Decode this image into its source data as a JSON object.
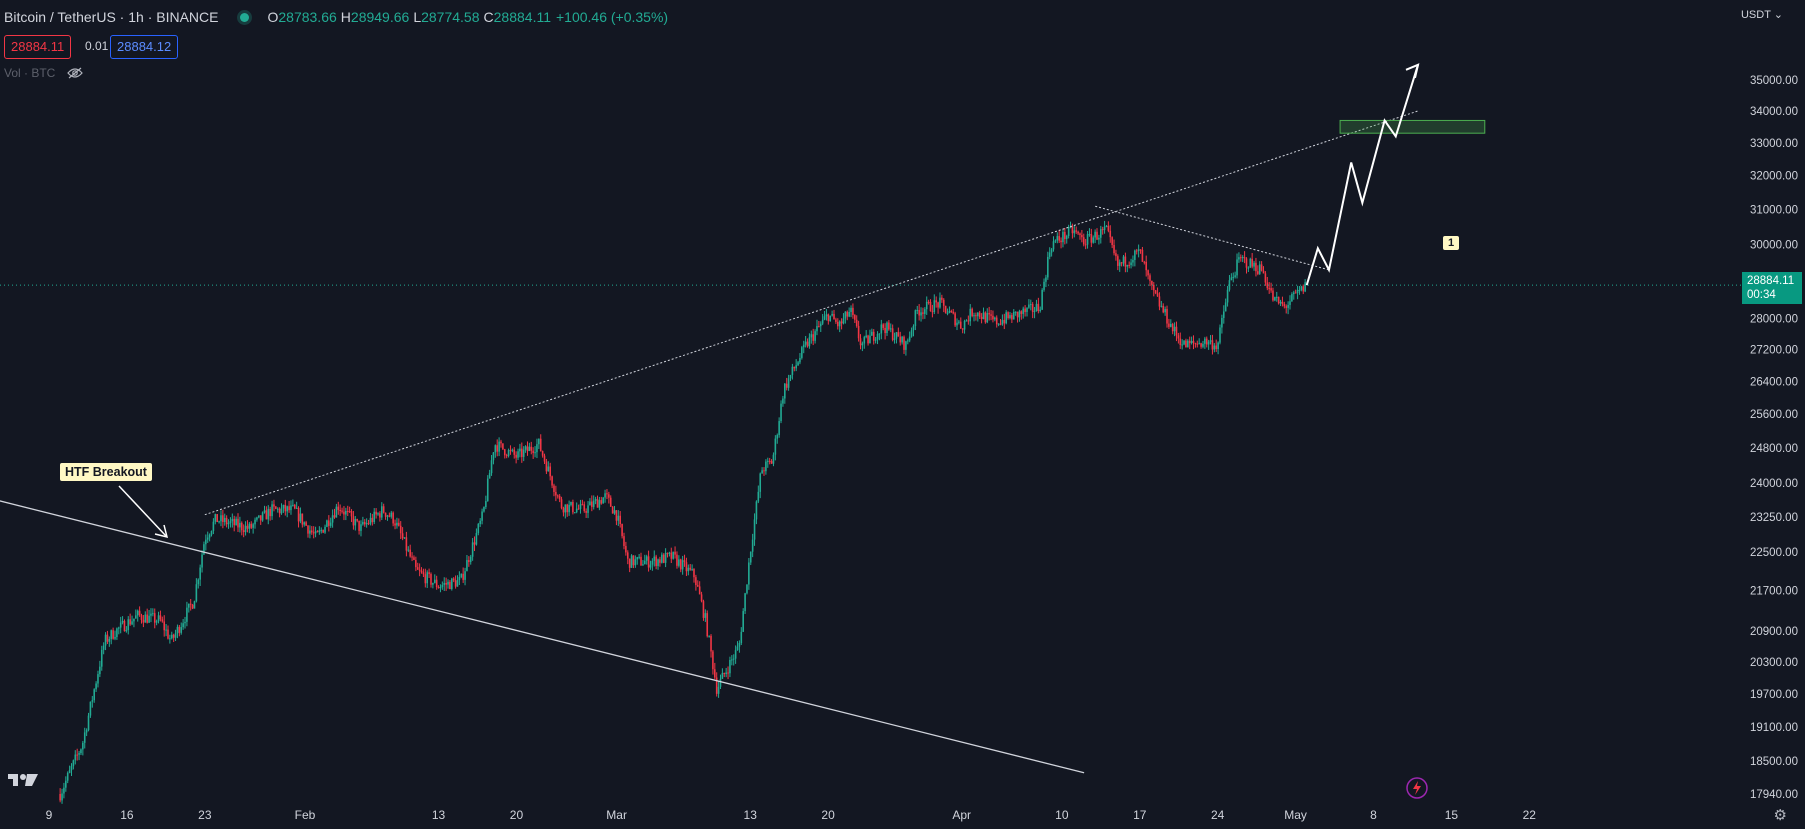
{
  "header": {
    "title": "Bitcoin / TetherUS · 1h · BINANCE",
    "open_label": "O",
    "open": "28783.66",
    "high_label": "H",
    "high": "28949.66",
    "low_label": "L",
    "low": "28774.58",
    "close_label": "C",
    "close": "28884.11",
    "change": "+100.46 (+0.35%)"
  },
  "order": {
    "sell": "28884.11",
    "spread": "0.01",
    "buy": "28884.12"
  },
  "volume": {
    "label": "Vol · BTC",
    "icon": "eye-off-icon"
  },
  "currency": "USDT",
  "current_price": {
    "price": "28884.11",
    "countdown": "00:34"
  },
  "annotations": {
    "breakout_label": "HTF Breakout",
    "marker_label": "1"
  },
  "colors": {
    "background": "#131722",
    "up": "#22ab94",
    "down": "#f23645",
    "price_tag": "#089981",
    "zone_fill": "rgba(76,175,80,0.25)",
    "zone_border": "#4caf50",
    "bolt": "#9c27b0"
  },
  "chart_data": {
    "type": "candlestick",
    "y_scale": "log",
    "y_tick_labels": [
      "35000.00",
      "34000.00",
      "33000.00",
      "32000.00",
      "31000.00",
      "30000.00",
      "28000.00",
      "27200.00",
      "26400.00",
      "25600.00",
      "24800.00",
      "24000.00",
      "23250.00",
      "22500.00",
      "21700.00",
      "20900.00",
      "20300.00",
      "19700.00",
      "19100.00",
      "18500.00",
      "17940.00"
    ],
    "y_ticks": [
      35000,
      34000,
      33000,
      32000,
      31000,
      30000,
      28000,
      27200,
      26400,
      25600,
      24800,
      24000,
      23250,
      22500,
      21700,
      20900,
      20300,
      19700,
      19100,
      18500,
      17940
    ],
    "x_tick_labels": [
      "9",
      "16",
      "23",
      "Feb",
      "13",
      "20",
      "Mar",
      "13",
      "20",
      "Apr",
      "10",
      "17",
      "24",
      "May",
      "8",
      "15",
      "22"
    ],
    "x_tick_days": [
      -23,
      -16,
      -9,
      0,
      12,
      19,
      28,
      40,
      47,
      59,
      68,
      75,
      82,
      89,
      96,
      103,
      110
    ],
    "x_tick_date_origin": "Feb",
    "price_path": [
      [
        -22,
        17940
      ],
      [
        -20,
        18800
      ],
      [
        -18,
        20700
      ],
      [
        -17,
        20900
      ],
      [
        -15,
        21200
      ],
      [
        -13,
        21100
      ],
      [
        -12,
        20700
      ],
      [
        -10,
        21500
      ],
      [
        -9,
        22800
      ],
      [
        -8,
        23200
      ],
      [
        -5,
        23000
      ],
      [
        -3,
        23400
      ],
      [
        -1,
        23400
      ],
      [
        1,
        22800
      ],
      [
        3,
        23500
      ],
      [
        5,
        23000
      ],
      [
        7,
        23400
      ],
      [
        8,
        23200
      ],
      [
        10,
        22100
      ],
      [
        12,
        21800
      ],
      [
        14,
        21900
      ],
      [
        16,
        23300
      ],
      [
        17,
        24900
      ],
      [
        19,
        24600
      ],
      [
        21,
        24900
      ],
      [
        23,
        23500
      ],
      [
        25,
        23400
      ],
      [
        27,
        23700
      ],
      [
        28,
        23300
      ],
      [
        29,
        22300
      ],
      [
        31,
        22300
      ],
      [
        33,
        22400
      ],
      [
        35,
        22000
      ],
      [
        36,
        21100
      ],
      [
        37,
        19800
      ],
      [
        38,
        20200
      ],
      [
        39,
        20600
      ],
      [
        40,
        22500
      ],
      [
        41,
        24300
      ],
      [
        42,
        24500
      ],
      [
        43,
        26200
      ],
      [
        45,
        27300
      ],
      [
        47,
        28100
      ],
      [
        48,
        27800
      ],
      [
        49,
        28200
      ],
      [
        50,
        27300
      ],
      [
        52,
        27800
      ],
      [
        54,
        27300
      ],
      [
        55,
        28200
      ],
      [
        57,
        28400
      ],
      [
        59,
        27800
      ],
      [
        60,
        28200
      ],
      [
        62,
        27900
      ],
      [
        64,
        28100
      ],
      [
        66,
        28300
      ],
      [
        67,
        30000
      ],
      [
        69,
        30400
      ],
      [
        70,
        30100
      ],
      [
        72,
        30400
      ],
      [
        73,
        29400
      ],
      [
        75,
        29800
      ],
      [
        76,
        28800
      ],
      [
        78,
        27700
      ],
      [
        79,
        27300
      ],
      [
        81,
        27400
      ],
      [
        82,
        27300
      ],
      [
        83,
        28900
      ],
      [
        84,
        29600
      ],
      [
        86,
        29300
      ],
      [
        87,
        28500
      ],
      [
        88,
        28300
      ],
      [
        89,
        28600
      ],
      [
        90,
        28884.11
      ]
    ],
    "series_count": "1",
    "projection_path": [
      [
        90,
        28884.11
      ],
      [
        91,
        29900
      ],
      [
        92,
        29300
      ],
      [
        94,
        32400
      ],
      [
        95,
        31200
      ],
      [
        97,
        33700
      ],
      [
        98,
        33200
      ],
      [
        100,
        35500
      ]
    ],
    "ascending_trendline": [
      [
        -9,
        23300
      ],
      [
        100,
        34000
      ]
    ],
    "descending_resistance": [
      [
        71,
        31100
      ],
      [
        92,
        29300
      ]
    ],
    "falling_support": [
      [
        -29,
        23700
      ],
      [
        70,
        18300
      ]
    ],
    "target_zone": {
      "day_start": 93,
      "day_end": 106,
      "low": 33300,
      "high": 33700
    },
    "current_price": 28884.11
  }
}
